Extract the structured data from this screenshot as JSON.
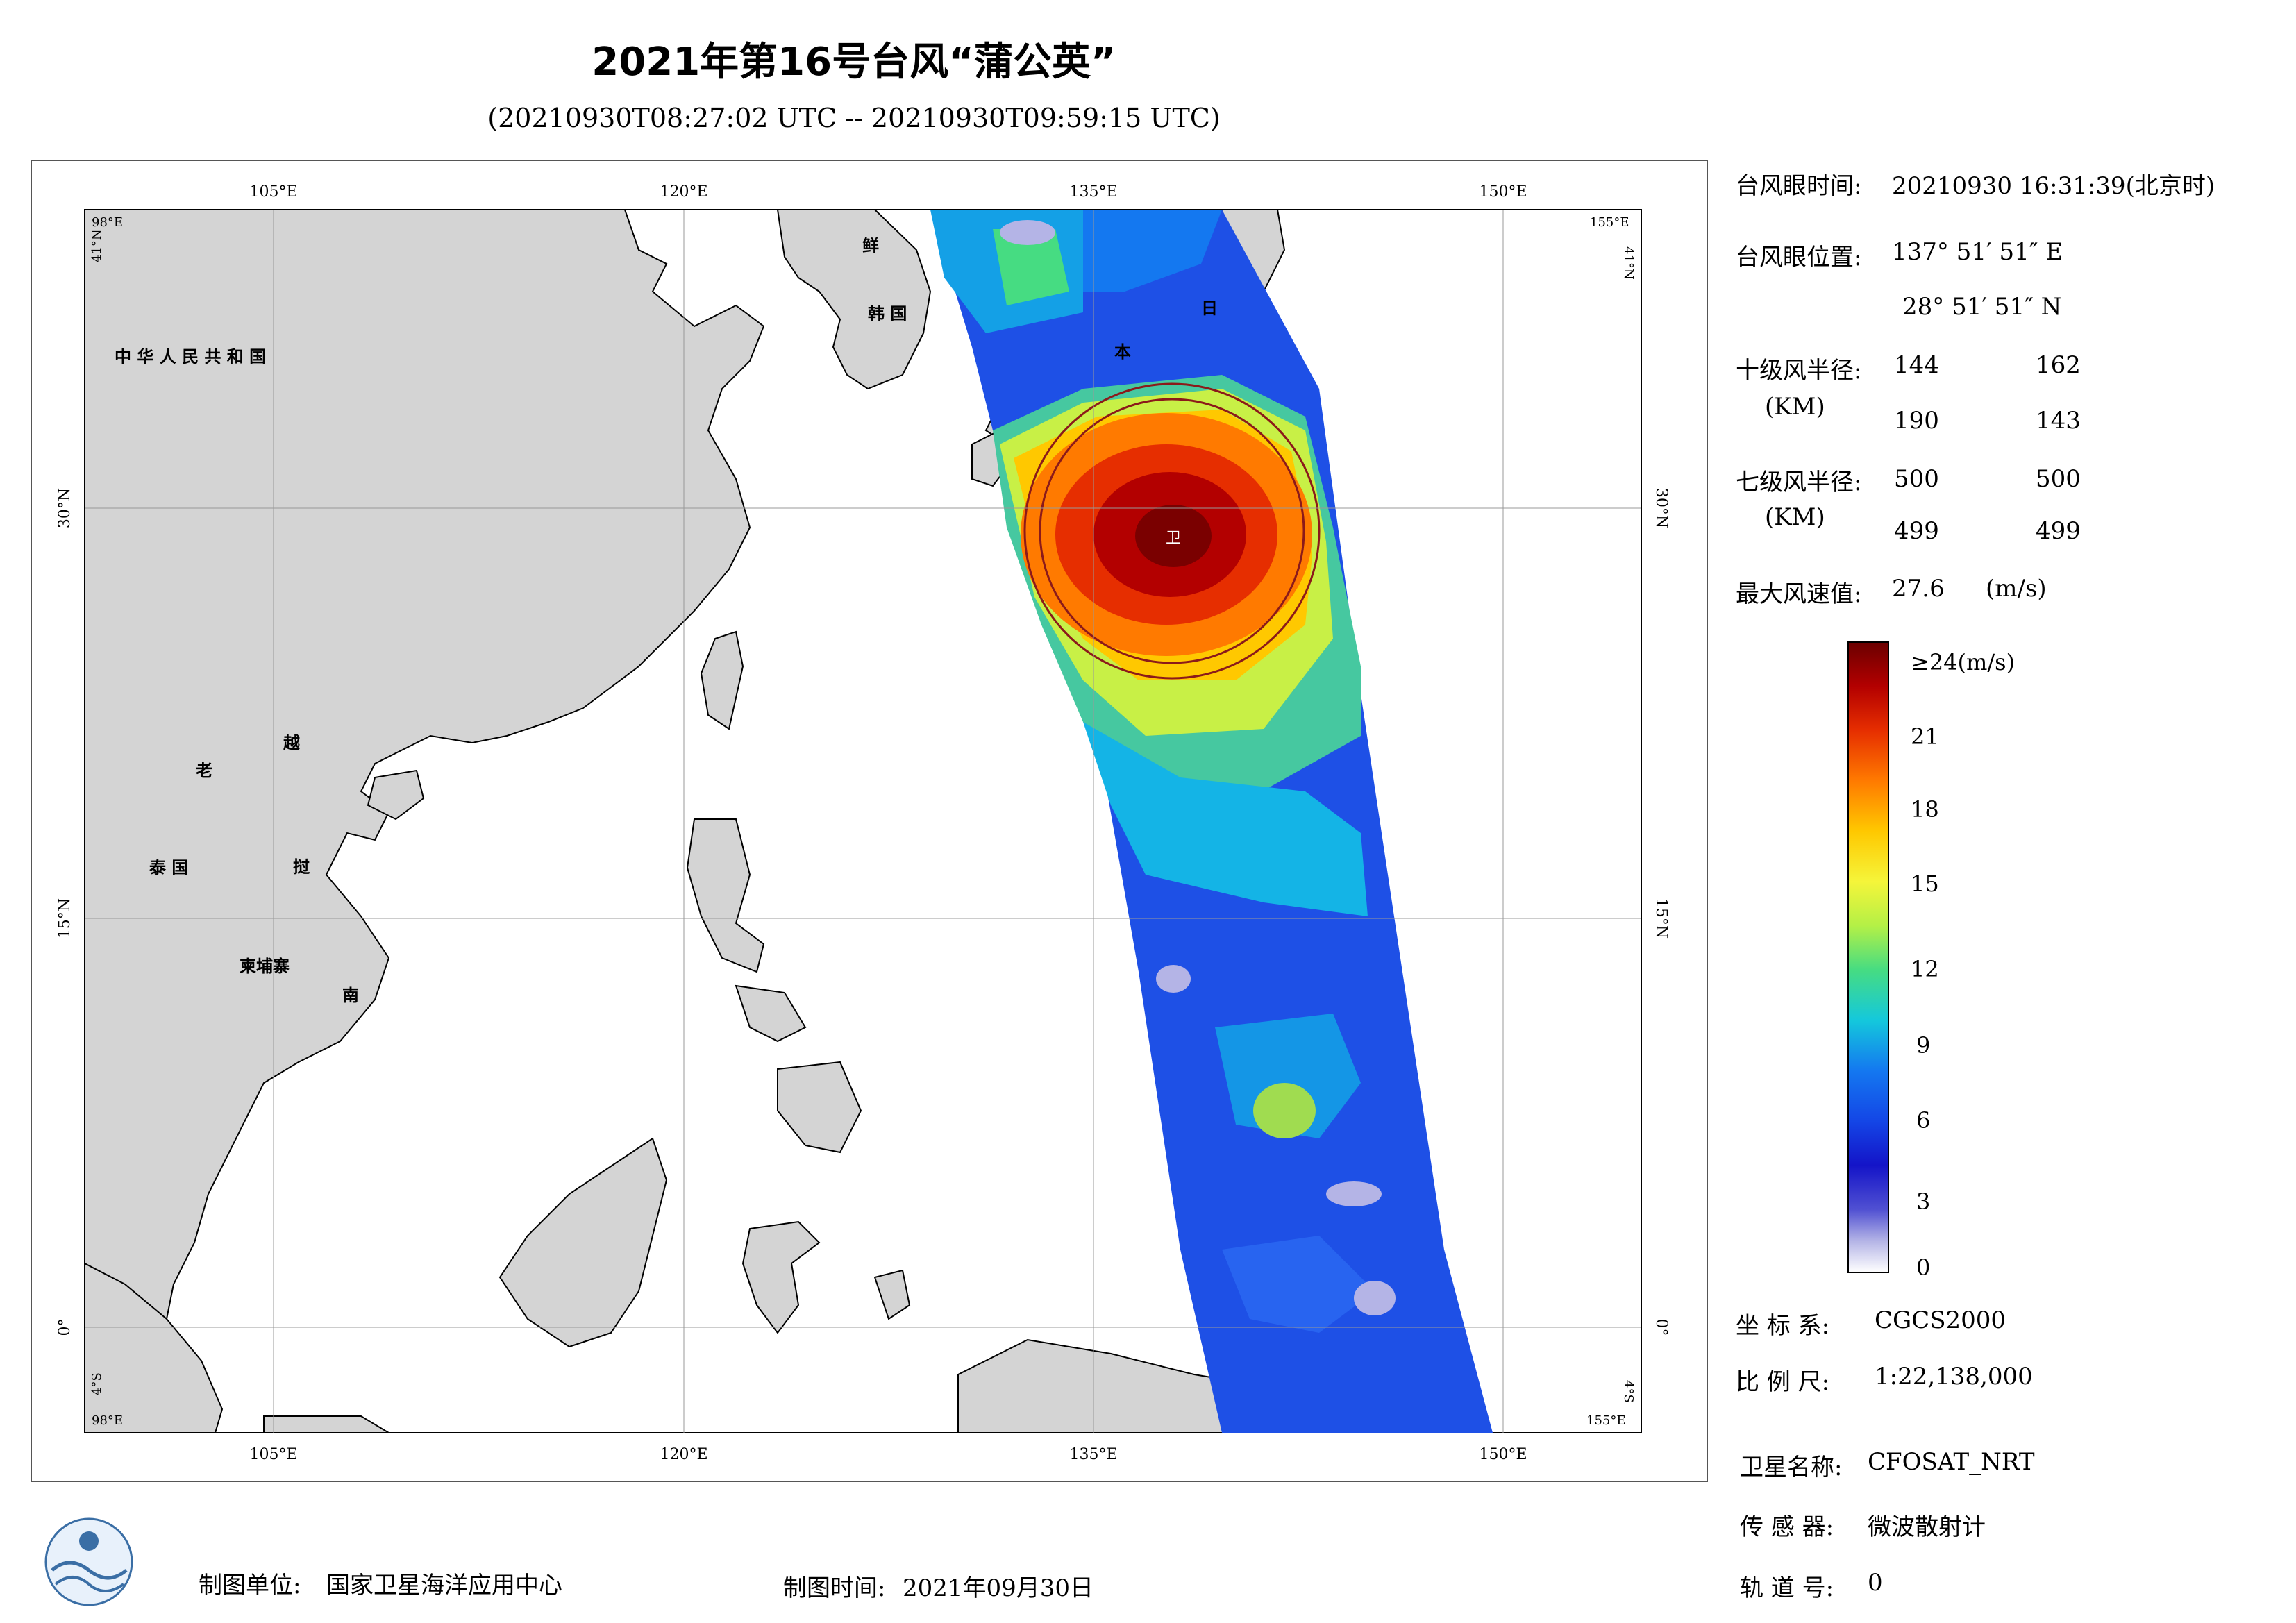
{
  "title": "2021年第16号台风“蒲公英”",
  "subtitle": "(20210930T08:27:02 UTC -- 20210930T09:59:15 UTC)",
  "map": {
    "top_lon_labels": [
      "105°E",
      "120°E",
      "135°E",
      "150°E"
    ],
    "bottom_lon_labels": [
      "105°E",
      "120°E",
      "135°E",
      "150°E"
    ],
    "left_lat_labels": [
      "30°N",
      "15°N",
      "0°"
    ],
    "right_lat_labels": [
      "30°N",
      "15°N",
      "0°"
    ],
    "corner_labels": {
      "top_left_lon": "98°E",
      "top_left_lat": "41°N",
      "top_right_lon": "155°E",
      "top_right_lat": "41°N",
      "bottom_left_lon": "98°E",
      "bottom_left_lat": "4°S",
      "bottom_right_lon": "155°E",
      "bottom_right_lat": "4°S"
    },
    "country_labels": {
      "china": "中 华 人 民 共 和 国",
      "korea_n": "鲜",
      "korea_s": "韩 国",
      "japan_1": "日",
      "japan_2": "本",
      "laos": "老",
      "vietnam_1": "越",
      "vietnam_2": "挝",
      "vietnam_3": "南",
      "thailand": "泰 国",
      "cambodia": "柬埔寨"
    },
    "eye_marker": "卫",
    "colors": {
      "land": "#d4d4d4",
      "coast": "#000000",
      "circle": "#8b1a1a"
    }
  },
  "info": {
    "eye_time_label": "台风眼时间:",
    "eye_time_value": "20210930 16:31:39(北京时)",
    "eye_pos_label": "台风眼位置:",
    "eye_lon": "137° 51′ 51″ E",
    "eye_lat": "28° 51′ 51″ N",
    "r10_label": "十级风半径:",
    "r10_unit": "(KM)",
    "r10_values": [
      "144",
      "162",
      "190",
      "143"
    ],
    "r7_label": "七级风半径:",
    "r7_unit": "(KM)",
    "r7_values": [
      "500",
      "500",
      "499",
      "499"
    ],
    "max_wind_label": "最大风速值:",
    "max_wind_value": "27.6",
    "max_wind_unit": "(m/s)"
  },
  "colorbar": {
    "top_label": "≥24(m/s)",
    "ticks": [
      "21",
      "18",
      "15",
      "12",
      "9",
      "6",
      "3",
      "0"
    ],
    "colors": [
      "#6b0000",
      "#b30000",
      "#e62e00",
      "#ff7a00",
      "#ffc800",
      "#f5f53a",
      "#b4f046",
      "#46dc82",
      "#14c8dc",
      "#1478f0",
      "#1446e6",
      "#1414c8",
      "#5050d2",
      "#b4b4e6",
      "#ffffff"
    ]
  },
  "meta": {
    "coord_label": "坐 标 系:",
    "coord_value": "CGCS2000",
    "scale_label": "比 例 尺:",
    "scale_value": "1:22,138,000",
    "satellite_label": "卫星名称:",
    "satellite_value": "CFOSAT_NRT",
    "sensor_label": "传 感 器:",
    "sensor_value": "微波散射计",
    "orbit_label": "轨 道 号:",
    "orbit_value": "0"
  },
  "footer": {
    "org_label": "制图单位:",
    "org_value": "国家卫星海洋应用中心",
    "date_label": "制图时间:",
    "date_value": "2021年09月30日"
  }
}
